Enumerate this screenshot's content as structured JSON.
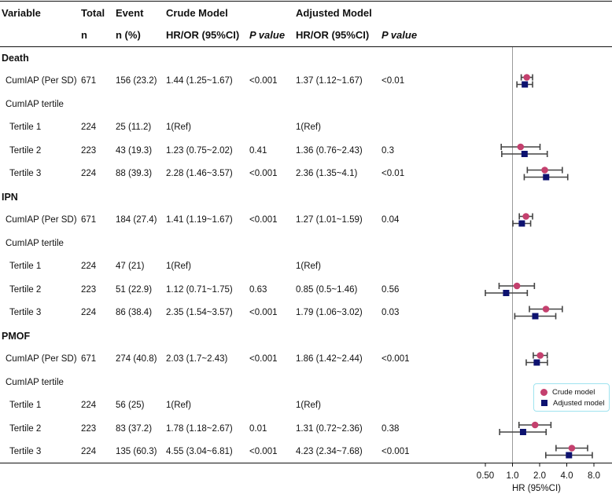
{
  "headers": {
    "variable": "Variable",
    "total": "Total",
    "total_sub": "n",
    "event": "Event",
    "event_sub": "n (%)",
    "crude": "Crude Model",
    "crude_hr": "HR/OR (95%CI)",
    "crude_p": "P value",
    "adjusted": "Adjusted Model",
    "adj_hr": "HR/OR (95%CI)",
    "adj_p": "P value"
  },
  "sections": [
    {
      "title": "Death",
      "rows": [
        {
          "label": "CumIAP (Per SD)",
          "total": "671",
          "event": "156 (23.2)",
          "crude": "1.44 (1.25~1.67)",
          "crude_p": "<0.001",
          "adj": "1.37 (1.12~1.67)",
          "adj_p": "<0.01"
        },
        {
          "label": "CumIAP tertile",
          "total": "",
          "event": "",
          "crude": "",
          "crude_p": "",
          "adj": "",
          "adj_p": ""
        },
        {
          "label": "Tertile 1",
          "total": "224",
          "event": "25 (11.2)",
          "crude": "1(Ref)",
          "crude_p": "",
          "adj": "1(Ref)",
          "adj_p": ""
        },
        {
          "label": "Tertile 2",
          "total": "223",
          "event": "43 (19.3)",
          "crude": "1.23 (0.75~2.02)",
          "crude_p": "0.41",
          "adj": "1.36 (0.76~2.43)",
          "adj_p": "0.3"
        },
        {
          "label": "Tertile 3",
          "total": "224",
          "event": "88 (39.3)",
          "crude": "2.28 (1.46~3.57)",
          "crude_p": "<0.001",
          "adj": "2.36 (1.35~4.1)",
          "adj_p": "<0.01"
        }
      ]
    },
    {
      "title": "IPN",
      "rows": [
        {
          "label": "CumIAP (Per SD)",
          "total": "671",
          "event": "184 (27.4)",
          "crude": "1.41 (1.19~1.67)",
          "crude_p": "<0.001",
          "adj": "1.27 (1.01~1.59)",
          "adj_p": "0.04"
        },
        {
          "label": "CumIAP tertile",
          "total": "",
          "event": "",
          "crude": "",
          "crude_p": "",
          "adj": "",
          "adj_p": ""
        },
        {
          "label": "Tertile 1",
          "total": "224",
          "event": "47 (21)",
          "crude": "1(Ref)",
          "crude_p": "",
          "adj": "1(Ref)",
          "adj_p": ""
        },
        {
          "label": "Tertile 2",
          "total": "223",
          "event": "51 (22.9)",
          "crude": "1.12 (0.71~1.75)",
          "crude_p": "0.63",
          "adj": "0.85 (0.5~1.46)",
          "adj_p": "0.56"
        },
        {
          "label": "Tertile 3",
          "total": "224",
          "event": "86 (38.4)",
          "crude": "2.35 (1.54~3.57)",
          "crude_p": "<0.001",
          "adj": "1.79 (1.06~3.02)",
          "adj_p": "0.03"
        }
      ]
    },
    {
      "title": "PMOF",
      "rows": [
        {
          "label": "CumIAP (Per SD)",
          "total": "671",
          "event": "274 (40.8)",
          "crude": "2.03 (1.7~2.43)",
          "crude_p": "<0.001",
          "adj": "1.86 (1.42~2.44)",
          "adj_p": "<0.001"
        },
        {
          "label": "CumIAP tertile",
          "total": "",
          "event": "",
          "crude": "",
          "crude_p": "",
          "adj": "",
          "adj_p": ""
        },
        {
          "label": "Tertile 1",
          "total": "224",
          "event": "56 (25)",
          "crude": "1(Ref)",
          "crude_p": "",
          "adj": "1(Ref)",
          "adj_p": ""
        },
        {
          "label": "Tertile 2",
          "total": "223",
          "event": "83 (37.2)",
          "crude": "1.78 (1.18~2.67)",
          "crude_p": "0.01",
          "adj": "1.31 (0.72~2.36)",
          "adj_p": "0.38"
        },
        {
          "label": "Tertile 3",
          "total": "224",
          "event": "135 (60.3)",
          "crude": "4.55 (3.04~6.81)",
          "crude_p": "<0.001",
          "adj": "4.23 (2.34~7.68)",
          "adj_p": "<0.001"
        }
      ]
    }
  ],
  "chart_data": {
    "type": "forest",
    "scale": "log2",
    "xlim": [
      0.5,
      8.0
    ],
    "xticks": [
      "0.50",
      "1.0",
      "2.0",
      "4.0",
      "8.0"
    ],
    "reference_line": 1.0,
    "xlabel": "HR (95%CI)",
    "legend": [
      {
        "name": "Crude model",
        "marker": "circle",
        "color": "#c4406e"
      },
      {
        "name": "Adjusted model",
        "marker": "square",
        "color": "#0d1270"
      }
    ],
    "ci_color": "#444444",
    "series": [
      {
        "name": "Crude model",
        "points": [
          {
            "row": "Death / CumIAP (Per SD)",
            "est": 1.44,
            "lo": 1.25,
            "hi": 1.67
          },
          {
            "row": "Death / Tertile 2",
            "est": 1.23,
            "lo": 0.75,
            "hi": 2.02
          },
          {
            "row": "Death / Tertile 3",
            "est": 2.28,
            "lo": 1.46,
            "hi": 3.57
          },
          {
            "row": "IPN / CumIAP (Per SD)",
            "est": 1.41,
            "lo": 1.19,
            "hi": 1.67
          },
          {
            "row": "IPN / Tertile 2",
            "est": 1.12,
            "lo": 0.71,
            "hi": 1.75
          },
          {
            "row": "IPN / Tertile 3",
            "est": 2.35,
            "lo": 1.54,
            "hi": 3.57
          },
          {
            "row": "PMOF / CumIAP (Per SD)",
            "est": 2.03,
            "lo": 1.7,
            "hi": 2.43
          },
          {
            "row": "PMOF / Tertile 2",
            "est": 1.78,
            "lo": 1.18,
            "hi": 2.67
          },
          {
            "row": "PMOF / Tertile 3",
            "est": 4.55,
            "lo": 3.04,
            "hi": 6.81
          }
        ]
      },
      {
        "name": "Adjusted model",
        "points": [
          {
            "row": "Death / CumIAP (Per SD)",
            "est": 1.37,
            "lo": 1.12,
            "hi": 1.67
          },
          {
            "row": "Death / Tertile 2",
            "est": 1.36,
            "lo": 0.76,
            "hi": 2.43
          },
          {
            "row": "Death / Tertile 3",
            "est": 2.36,
            "lo": 1.35,
            "hi": 4.1
          },
          {
            "row": "IPN / CumIAP (Per SD)",
            "est": 1.27,
            "lo": 1.01,
            "hi": 1.59
          },
          {
            "row": "IPN / Tertile 2",
            "est": 0.85,
            "lo": 0.5,
            "hi": 1.46
          },
          {
            "row": "IPN / Tertile 3",
            "est": 1.79,
            "lo": 1.06,
            "hi": 3.02
          },
          {
            "row": "PMOF / CumIAP (Per SD)",
            "est": 1.86,
            "lo": 1.42,
            "hi": 2.44
          },
          {
            "row": "PMOF / Tertile 2",
            "est": 1.31,
            "lo": 0.72,
            "hi": 2.36
          },
          {
            "row": "PMOF / Tertile 3",
            "est": 4.23,
            "lo": 2.34,
            "hi": 7.68
          }
        ]
      }
    ]
  }
}
